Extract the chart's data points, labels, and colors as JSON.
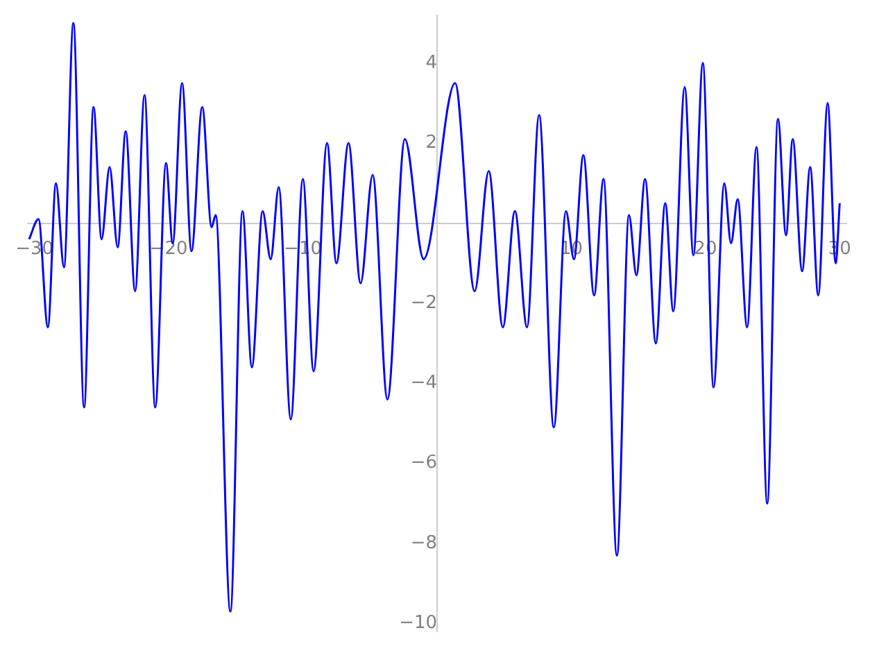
{
  "chart_data": {
    "type": "line",
    "color": "#0000ff",
    "x": [
      -30.4,
      -29.7,
      -29.0,
      -28.4,
      -27.8,
      -27.1,
      -26.3,
      -25.6,
      -25.0,
      -24.4,
      -23.8,
      -23.2,
      -22.5,
      -21.8,
      -21.0,
      -20.2,
      -19.7,
      -19.0,
      -18.3,
      -17.5,
      -16.8,
      -16.5,
      -15.4,
      -14.5,
      -13.8,
      -13.0,
      -12.4,
      -11.8,
      -10.9,
      -10.0,
      -9.2,
      -8.2,
      -7.5,
      -6.6,
      -5.7,
      -4.8,
      -3.7,
      -2.4,
      -1.0,
      1.34,
      2.8,
      3.85,
      4.9,
      5.8,
      6.7,
      7.6,
      8.7,
      9.6,
      10.2,
      10.9,
      11.7,
      12.4,
      13.4,
      14.3,
      14.85,
      15.5,
      16.3,
      17.0,
      17.6,
      18.45,
      19.1,
      19.8,
      20.6,
      21.4,
      21.9,
      22.4,
      23.1,
      23.8,
      24.6,
      25.4,
      26.0,
      26.5,
      27.2,
      27.8,
      28.4,
      29.1,
      29.7,
      30.0
    ],
    "values": [
      -0.4,
      0.1,
      -2.6,
      1.0,
      -1.1,
      5.0,
      -4.6,
      2.9,
      -0.4,
      1.4,
      -0.6,
      2.3,
      -1.7,
      3.2,
      -4.6,
      1.5,
      -0.5,
      3.5,
      -0.7,
      2.9,
      -0.1,
      0.2,
      -9.7,
      0.3,
      -3.6,
      0.3,
      -0.9,
      0.9,
      -4.9,
      1.1,
      -3.7,
      2.0,
      -1.0,
      2.0,
      -1.5,
      1.2,
      -4.4,
      2.1,
      -0.9,
      3.5,
      -1.7,
      1.3,
      -2.6,
      0.3,
      -2.6,
      2.7,
      -5.1,
      0.3,
      -0.9,
      1.7,
      -1.8,
      1.1,
      -8.3,
      0.2,
      -1.3,
      1.1,
      -3.0,
      0.5,
      -2.2,
      3.4,
      -0.8,
      4.0,
      -4.1,
      1.0,
      -0.5,
      0.6,
      -2.6,
      1.9,
      -7.0,
      2.6,
      -0.3,
      2.1,
      -1.2,
      1.4,
      -1.8,
      3.0,
      -1.0,
      0.5
    ],
    "xlim": [
      -30.5,
      30.5
    ],
    "ylim": [
      -10.2,
      5.2
    ],
    "xticks": [
      -30,
      -20,
      -10,
      10,
      20,
      30
    ],
    "yticks": [
      -10,
      -8,
      -6,
      -4,
      -2,
      2,
      4
    ]
  }
}
